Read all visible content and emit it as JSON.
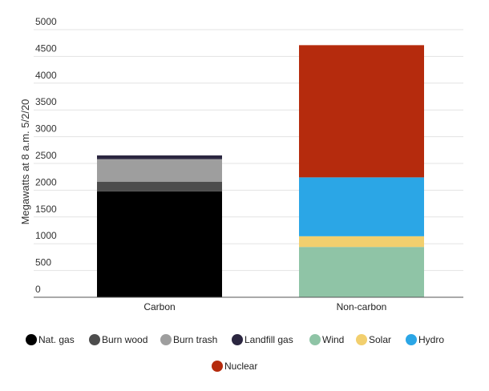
{
  "chart_data": {
    "type": "bar",
    "stacked": true,
    "categories": [
      "Carbon",
      "Non-carbon"
    ],
    "ylabel": "Megawatts at 8 a.m. 5/2/20",
    "ylim": [
      0,
      5000
    ],
    "yticks": [
      0,
      500,
      1000,
      1500,
      2000,
      2500,
      3000,
      3500,
      4000,
      4500,
      5000
    ],
    "grid": true,
    "legend_position": "bottom",
    "series": [
      {
        "name": "Nat. gas",
        "color": "#000000",
        "values": [
          1980,
          0
        ]
      },
      {
        "name": "Burn wood",
        "color": "#4d4d4d",
        "values": [
          180,
          0
        ]
      },
      {
        "name": "Burn trash",
        "color": "#9e9e9e",
        "values": [
          420,
          0
        ]
      },
      {
        "name": "Landfill gas",
        "color": "#2b2640",
        "values": [
          70,
          0
        ]
      },
      {
        "name": "Wind",
        "color": "#8fc4a6",
        "values": [
          0,
          940
        ]
      },
      {
        "name": "Solar",
        "color": "#f2cf6e",
        "values": [
          0,
          200
        ]
      },
      {
        "name": "Hydro",
        "color": "#2ba6e6",
        "values": [
          0,
          1100
        ]
      },
      {
        "name": "Nuclear",
        "color": "#b52b0d",
        "values": [
          0,
          2470
        ]
      }
    ]
  }
}
